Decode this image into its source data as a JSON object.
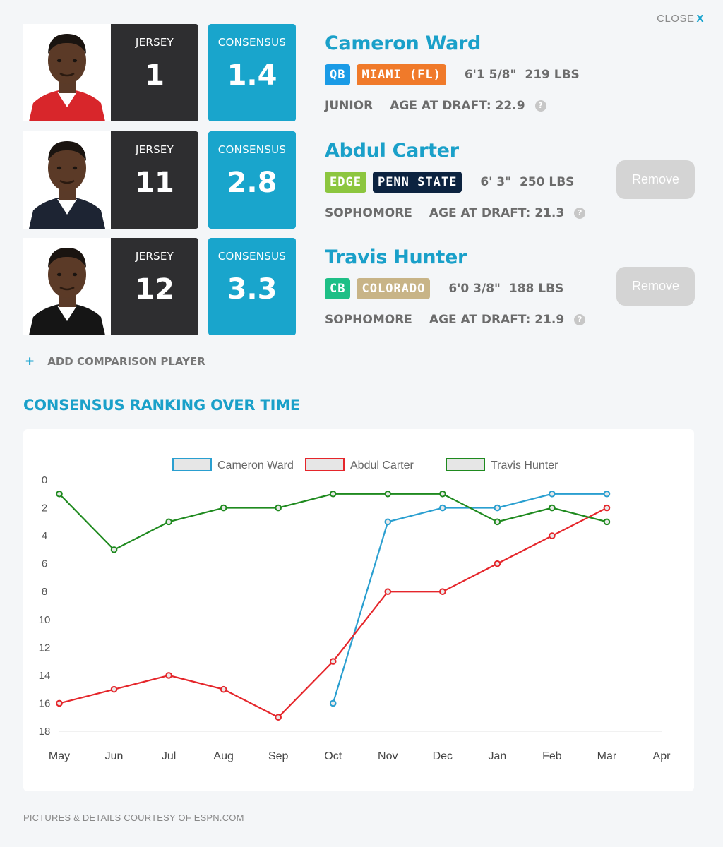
{
  "header": {
    "close_label": "CLOSE",
    "close_x": "X"
  },
  "players": [
    {
      "name": "Cameron Ward",
      "jersey_label": "JERSEY",
      "jersey": "1",
      "consensus_label": "CONSENSUS",
      "consensus": "1.4",
      "position": "QB",
      "position_color": "#1a9be6",
      "school": "MIAMI (FL)",
      "school_color": "#f07a2a",
      "height": "6'1 5/8\"",
      "weight": "219 LBS",
      "class": "JUNIOR",
      "age": "AGE AT DRAFT: 22.9",
      "help": "?",
      "remove_label": "",
      "shirt_color": "#d8262b"
    },
    {
      "name": "Abdul Carter",
      "jersey_label": "JERSEY",
      "jersey": "11",
      "consensus_label": "CONSENSUS",
      "consensus": "2.8",
      "position": "EDGE",
      "position_color": "#8cc63f",
      "school": "PENN STATE",
      "school_color": "#0c2340",
      "height": "6' 3\"",
      "weight": "250 LBS",
      "class": "SOPHOMORE",
      "age": "AGE AT DRAFT: 21.3",
      "help": "?",
      "remove_label": "Remove",
      "shirt_color": "#1d2433"
    },
    {
      "name": "Travis Hunter",
      "jersey_label": "JERSEY",
      "jersey": "12",
      "consensus_label": "CONSENSUS",
      "consensus": "3.3",
      "position": "CB",
      "position_color": "#1ebf86",
      "school": "COLORADO",
      "school_color": "#c8b487",
      "height": "6'0 3/8\"",
      "weight": "188 LBS",
      "class": "SOPHOMORE",
      "age": "AGE AT DRAFT: 21.9",
      "help": "?",
      "remove_label": "Remove",
      "shirt_color": "#151515"
    }
  ],
  "add_comparison": {
    "icon": "plus-icon",
    "label": "ADD COMPARISON PLAYER"
  },
  "section_title": "CONSENSUS RANKING OVER TIME",
  "chart_data": {
    "type": "line",
    "title": "",
    "xlabel": "",
    "ylabel": "",
    "categories": [
      "May",
      "Jun",
      "Jul",
      "Aug",
      "Sep",
      "Oct",
      "Nov",
      "Dec",
      "Jan",
      "Feb",
      "Mar",
      "Apr"
    ],
    "y_range": [
      0,
      18
    ],
    "y_ticks": [
      0,
      2,
      4,
      6,
      8,
      10,
      12,
      14,
      16,
      18
    ],
    "y_reversed": true,
    "legend_position": "top-center",
    "series": [
      {
        "name": "Cameron Ward",
        "color": "#2a9fd0",
        "values": [
          null,
          null,
          null,
          null,
          null,
          16,
          3,
          2,
          2,
          1,
          1,
          null
        ]
      },
      {
        "name": "Abdul Carter",
        "color": "#e5262b",
        "values": [
          16,
          15,
          14,
          15,
          17,
          13,
          8,
          8,
          6,
          4,
          2,
          null
        ]
      },
      {
        "name": "Travis Hunter",
        "color": "#1f8a1f",
        "values": [
          1,
          5,
          3,
          2,
          2,
          1,
          1,
          1,
          3,
          2,
          3,
          null
        ]
      }
    ]
  },
  "footer": "PICTURES & DETAILS COURTESY OF ESPN.COM"
}
